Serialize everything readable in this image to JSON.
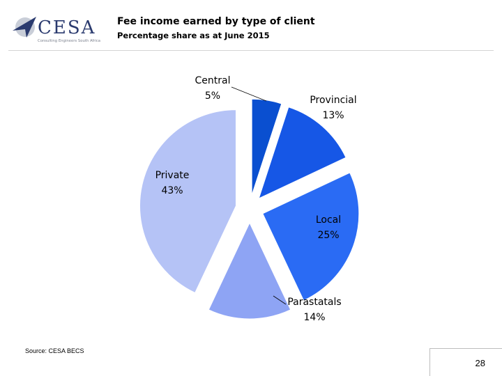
{
  "brand": {
    "name": "CESA",
    "tagline": "Consulting Engineers South Africa",
    "color": "#2a3a6e"
  },
  "title": "Fee income earned by type of client",
  "subtitle": "Percentage share as at June 2015",
  "source": "Source: CESA BECS",
  "page_number": "28",
  "chart_data": {
    "type": "pie",
    "title": "Fee income earned by type of client",
    "subtitle": "Percentage share as at June 2015",
    "exploded": true,
    "legend": "none",
    "slices": [
      {
        "label": "Central",
        "value": 5,
        "display": "5%",
        "color": "#0a4fd0"
      },
      {
        "label": "Provincial",
        "value": 13,
        "display": "13%",
        "color": "#1657e6"
      },
      {
        "label": "Local",
        "value": 25,
        "display": "25%",
        "color": "#2a6bf4"
      },
      {
        "label": "Parastatals",
        "value": 14,
        "display": "14%",
        "color": "#8ea4f4"
      },
      {
        "label": "Private",
        "value": 43,
        "display": "43%",
        "color": "#b5c3f6"
      }
    ]
  }
}
